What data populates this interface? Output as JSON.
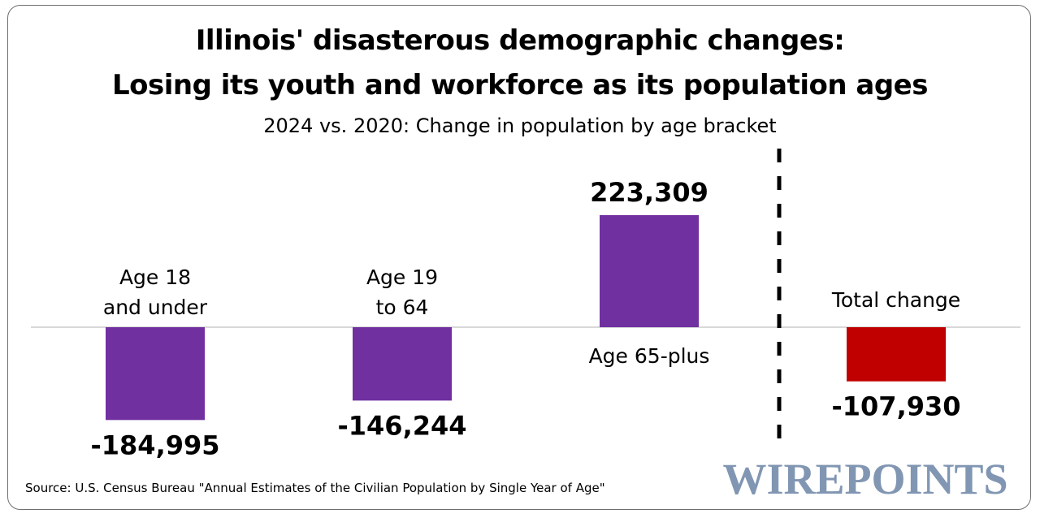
{
  "title_line1": "Illinois' disasterous demographic changes:",
  "title_line2": "Losing its youth and workforce as its population ages",
  "subtitle": "2024 vs. 2020: Change in population by age bracket",
  "source": "Source: U.S. Census Bureau \"Annual Estimates of the Civilian Population by Single Year of Age\"",
  "logo_text": "WIREPOINTS",
  "colors": {
    "age_bar": "#7030a0",
    "total_bar": "#c00000",
    "zero_line": "#cccccc",
    "divider": "#000000"
  },
  "chart_data": {
    "type": "bar",
    "title": "Illinois' disasterous demographic changes: Losing its youth and workforce as its population ages",
    "subtitle": "2024 vs. 2020: Change in population by age bracket",
    "categories": [
      {
        "line1": "Age 18",
        "line2": "and under"
      },
      {
        "line1": "Age 19",
        "line2": "to 64"
      },
      {
        "line1": "Age 65-plus",
        "line2": ""
      },
      {
        "line1": "Total change",
        "line2": ""
      }
    ],
    "values": [
      -184995,
      -146244,
      223309,
      -107930
    ],
    "value_labels": [
      "-184,995",
      "-146,244",
      "223,309",
      "-107,930"
    ],
    "ylim": [
      -200000,
      250000
    ],
    "grid": false,
    "legend": "none"
  }
}
